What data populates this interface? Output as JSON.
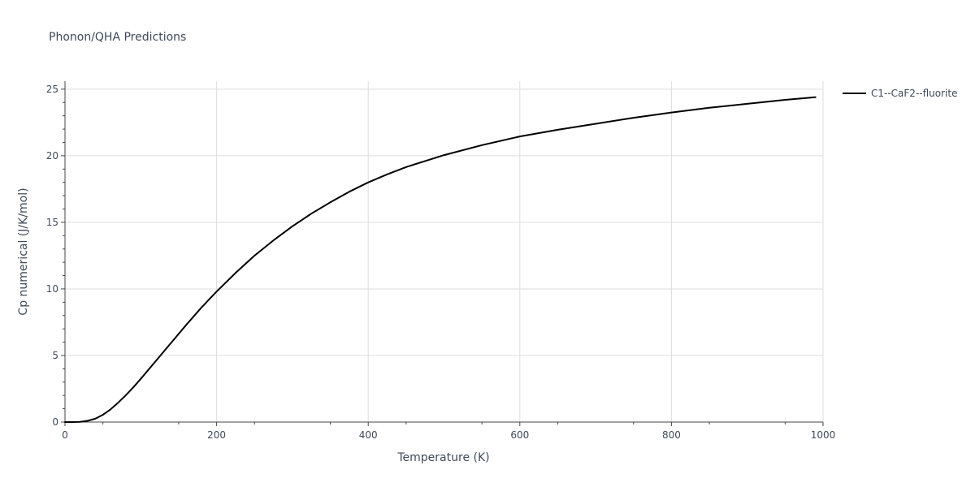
{
  "chart_data": {
    "type": "line",
    "title": "Phonon/QHA Predictions",
    "xlabel": "Temperature (K)",
    "ylabel": "Cp numerical (J/K/mol)",
    "xlim": [
      0,
      1000
    ],
    "ylim": [
      0,
      25.6
    ],
    "xticks": [
      0,
      200,
      400,
      600,
      800,
      1000
    ],
    "yticks": [
      0,
      5,
      10,
      15,
      20,
      25
    ],
    "grid": true,
    "legend_position": "top-right-outside",
    "series": [
      {
        "name": "C1--CaF2--fluorite",
        "color": "#000000",
        "x": [
          0,
          10,
          20,
          30,
          40,
          50,
          60,
          70,
          80,
          90,
          100,
          120,
          140,
          160,
          180,
          200,
          225,
          250,
          275,
          300,
          325,
          350,
          375,
          400,
          425,
          450,
          475,
          500,
          550,
          600,
          650,
          700,
          750,
          800,
          850,
          900,
          950,
          990
        ],
        "y": [
          0,
          0,
          0.02,
          0.1,
          0.25,
          0.55,
          0.95,
          1.45,
          2.0,
          2.6,
          3.25,
          4.6,
          5.95,
          7.3,
          8.6,
          9.8,
          11.2,
          12.5,
          13.65,
          14.7,
          15.65,
          16.5,
          17.3,
          18.0,
          18.6,
          19.15,
          19.6,
          20.05,
          20.8,
          21.45,
          21.95,
          22.4,
          22.85,
          23.25,
          23.6,
          23.9,
          24.2,
          24.4
        ]
      }
    ]
  }
}
